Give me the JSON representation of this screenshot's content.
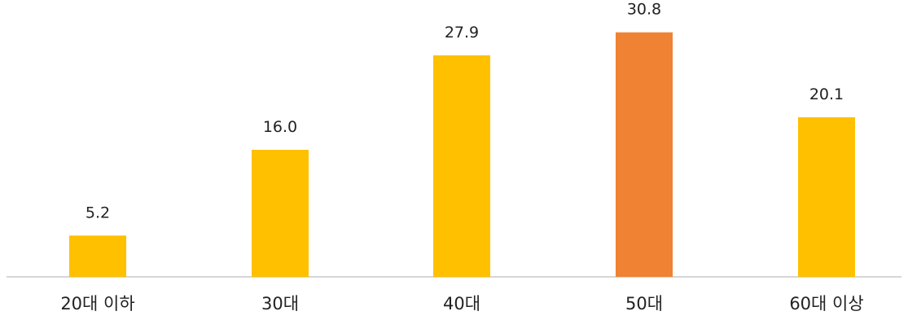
{
  "chart_data": {
    "type": "bar",
    "categories": [
      "20대 이하",
      "30대",
      "40대",
      "50대",
      "60대 이상"
    ],
    "values": [
      5.2,
      16.0,
      27.9,
      30.8,
      20.1
    ],
    "value_labels": [
      "5.2",
      "16.0",
      "27.9",
      "30.8",
      "20.1"
    ],
    "highlight_index": 3,
    "colors": {
      "bar": "#FFC000",
      "highlight": "#F08234",
      "axis": "#C8C8C8"
    },
    "title": "",
    "xlabel": "",
    "ylabel": "",
    "ylim": [
      0,
      32
    ],
    "grid": false,
    "legend": "none"
  }
}
